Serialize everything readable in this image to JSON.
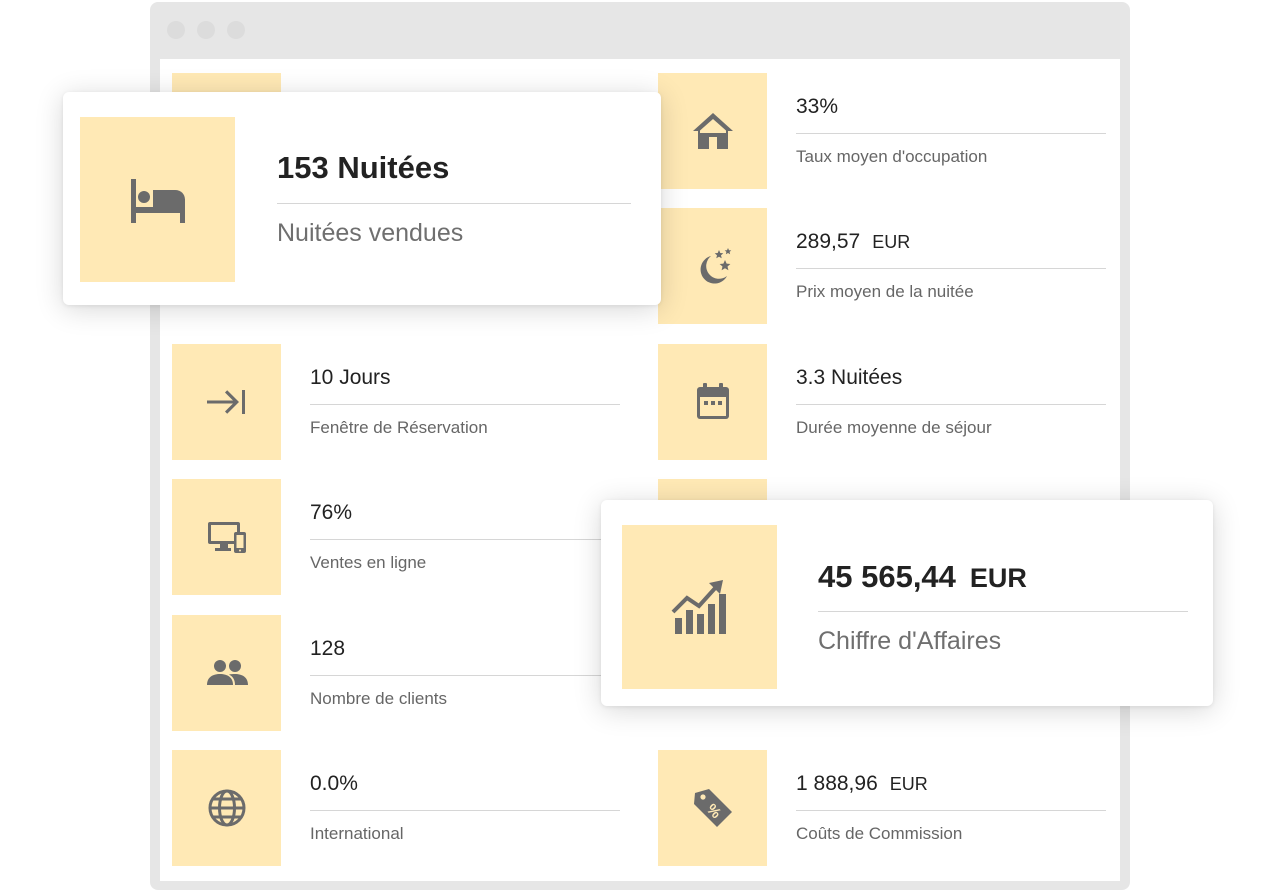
{
  "tiles": {
    "occupancy": {
      "value": "33%",
      "label": "Taux moyen d'occupation",
      "icon": "house-icon"
    },
    "avg_price": {
      "value": "289,57",
      "unit": "EUR",
      "label": "Prix moyen de la nuitée",
      "icon": "moon-stars-icon"
    },
    "booking_window": {
      "value": "10 Jours",
      "label": "Fenêtre de Réservation",
      "icon": "arrow-to-bar-icon"
    },
    "avg_stay": {
      "value": "3.3 Nuitées",
      "label": "Durée moyenne de séjour",
      "icon": "calendar-icon"
    },
    "online_sales": {
      "value": "76%",
      "label": "Ventes en ligne",
      "icon": "devices-icon"
    },
    "clients": {
      "value": "128",
      "label": "Nombre de clients",
      "icon": "people-icon"
    },
    "international": {
      "value": "0.0%",
      "label": "International",
      "icon": "globe-icon"
    },
    "commission": {
      "value": "1 888,96",
      "unit": "EUR",
      "label": "Coûts de Commission",
      "icon": "percent-tag-icon"
    }
  },
  "cards": {
    "nights": {
      "value": "153 Nuitées",
      "label": "Nuitées vendues",
      "icon": "bed-icon"
    },
    "revenue": {
      "value": "45 565,44",
      "unit": "EUR",
      "label": "Chiffre d'Affaires",
      "icon": "bar-chart-up-icon"
    }
  },
  "colors": {
    "accent_bg": "#ffe9b5",
    "icon": "#6b6b6b",
    "frame": "#e6e6e6"
  }
}
